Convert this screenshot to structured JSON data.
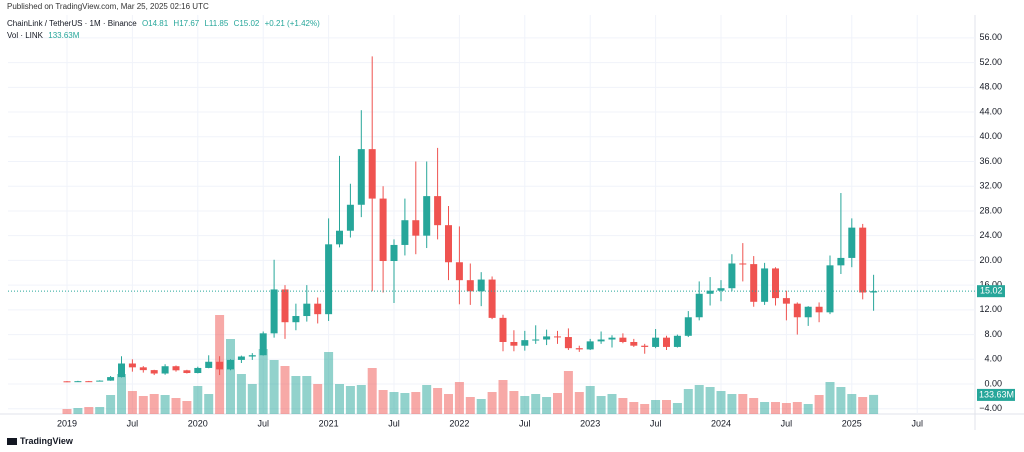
{
  "header": {
    "published": "Published on TradingView.com, Mar 25, 2025 02:16 UTC",
    "symbol": "ChainLink / TetherUS · 1M · Binance",
    "ohlc": [
      "O14.81",
      "H17.67",
      "L11.85",
      "C15.02",
      "+0.21 (+1.42%)"
    ],
    "volume_title": "Vol · LINK"
  },
  "footer": {
    "brand": "TradingView"
  },
  "chart_data": {
    "type": "candlestick",
    "x": [
      "2019-01",
      "2019-02",
      "2019-03",
      "2019-04",
      "2019-05",
      "2019-06",
      "2019-07",
      "2019-08",
      "2019-09",
      "2019-10",
      "2019-11",
      "2019-12",
      "2020-01",
      "2020-02",
      "2020-03",
      "2020-04",
      "2020-05",
      "2020-06",
      "2020-07",
      "2020-08",
      "2020-09",
      "2020-10",
      "2020-11",
      "2020-12",
      "2021-01",
      "2021-02",
      "2021-03",
      "2021-04",
      "2021-05",
      "2021-06",
      "2021-07",
      "2021-08",
      "2021-09",
      "2021-10",
      "2021-11",
      "2021-12",
      "2022-01",
      "2022-02",
      "2022-03",
      "2022-04",
      "2022-05",
      "2022-06",
      "2022-07",
      "2022-08",
      "2022-09",
      "2022-10",
      "2022-11",
      "2022-12",
      "2023-01",
      "2023-02",
      "2023-03",
      "2023-04",
      "2023-05",
      "2023-06",
      "2023-07",
      "2023-08",
      "2023-09",
      "2023-10",
      "2023-11",
      "2023-12",
      "2024-01",
      "2024-02",
      "2024-03",
      "2024-04",
      "2024-05",
      "2024-06",
      "2024-07",
      "2024-08",
      "2024-09",
      "2024-10",
      "2024-11",
      "2024-12",
      "2025-01",
      "2025-02",
      "2025-03"
    ],
    "open": [
      0.44,
      0.36,
      0.46,
      0.45,
      0.55,
      1.12,
      3.32,
      2.7,
      2.25,
      1.7,
      2.88,
      2.22,
      1.78,
      2.6,
      3.6,
      2.37,
      3.9,
      4.45,
      4.66,
      8.2,
      15.3,
      10,
      11,
      13,
      11.3,
      22.6,
      24.8,
      29,
      38,
      30,
      19.9,
      22.5,
      26.5,
      24,
      30.4,
      25.7,
      19.7,
      16.8,
      15,
      16.9,
      10.7,
      6.8,
      6.2,
      7.1,
      7.2,
      7.7,
      7.6,
      5.8,
      5.6,
      6.9,
      7.2,
      7.5,
      6.8,
      6.2,
      6,
      7.5,
      6,
      7.8,
      10.8,
      14.6,
      15.1,
      15.5,
      19.5,
      19.4,
      13.3,
      18.7,
      13.9,
      13,
      10.8,
      12.5,
      11.6,
      19.2,
      20.4,
      25.3,
      14.81
    ],
    "high": [
      0.46,
      0.52,
      0.5,
      0.6,
      1.3,
      4.5,
      4,
      2.9,
      2.3,
      3.2,
      3,
      2.3,
      2.8,
      4.65,
      4.5,
      4,
      4.6,
      5,
      8.5,
      20.1,
      16,
      13,
      16,
      14,
      26.8,
      36.9,
      32.4,
      44.3,
      53,
      32,
      23.4,
      30,
      36,
      36,
      38.2,
      28.8,
      25.5,
      19.5,
      18.1,
      17.4,
      11.2,
      8.7,
      8.6,
      9.5,
      8.8,
      8.6,
      9,
      6.2,
      7.3,
      8.5,
      7.9,
      8.2,
      7.3,
      6.5,
      8.9,
      7.8,
      8,
      11.8,
      16.6,
      17.3,
      16.8,
      21,
      22.8,
      20.7,
      19.6,
      18.9,
      15.1,
      13.2,
      12.6,
      13.2,
      20.8,
      30.9,
      26.8,
      25.9,
      17.67
    ],
    "low": [
      0.3,
      0.34,
      0.42,
      0.43,
      0.52,
      1.05,
      2,
      1.85,
      1.45,
      1.5,
      2,
      1.7,
      1.72,
      2.55,
      1.45,
      2.22,
      3.4,
      3.9,
      4.6,
      7.5,
      7.3,
      8.7,
      10.1,
      9.8,
      10.2,
      22.1,
      23.7,
      27,
      15,
      14.8,
      13.1,
      20.8,
      21,
      22,
      23.4,
      16.8,
      12.9,
      12.8,
      12.6,
      10.5,
      5.3,
      5.3,
      5.4,
      6.5,
      6.3,
      6.5,
      5.5,
      5.2,
      5.5,
      6.5,
      5.9,
      6.6,
      6,
      4.9,
      5.8,
      5.5,
      5.9,
      7.6,
      10.3,
      12.7,
      13.4,
      15,
      16.6,
      12.5,
      12.8,
      12.7,
      10.3,
      8,
      9.4,
      10,
      11.3,
      17.8,
      18.9,
      13.7,
      11.85
    ],
    "close": [
      0.36,
      0.46,
      0.45,
      0.55,
      1.12,
      3.32,
      2.7,
      2.25,
      1.7,
      2.88,
      2.22,
      1.78,
      2.6,
      3.6,
      2.37,
      3.9,
      4.45,
      4.66,
      8.2,
      15.3,
      10,
      11,
      13,
      11.3,
      22.6,
      24.8,
      29,
      38,
      30,
      19.9,
      22.5,
      26.5,
      24,
      30.4,
      25.7,
      19.7,
      16.8,
      15,
      16.9,
      10.7,
      6.8,
      6.2,
      7.1,
      7.2,
      7.7,
      7.6,
      5.8,
      5.6,
      6.9,
      7.2,
      7.5,
      6.8,
      6.2,
      6,
      7.5,
      6,
      7.8,
      10.8,
      14.6,
      15.1,
      15.5,
      19.5,
      19.4,
      13.3,
      18.7,
      13.9,
      13,
      10.8,
      12.5,
      11.6,
      19.2,
      20.4,
      25.3,
      14.81,
      15.02
    ],
    "volume": [
      35,
      42,
      49,
      49,
      133,
      280,
      161,
      126,
      140,
      133,
      112,
      91,
      196,
      140,
      693,
      525,
      280,
      210,
      455,
      378,
      336,
      266,
      266,
      210,
      434,
      210,
      196,
      203,
      322,
      168,
      154,
      147,
      154,
      203,
      182,
      140,
      224,
      119,
      105,
      154,
      238,
      161,
      126,
      140,
      119,
      147,
      301,
      154,
      196,
      126,
      140,
      112,
      84,
      70,
      98,
      98,
      77,
      175,
      203,
      189,
      161,
      140,
      140,
      112,
      84,
      84,
      77,
      84,
      70,
      133,
      224,
      189,
      140,
      119,
      133.63
    ],
    "last_volume_label": "133.63M",
    "up_color": "#26a69a",
    "down_color": "#ef5350",
    "ylim": [
      -4.85,
      59.7
    ],
    "yticks": [
      {
        "value": -4,
        "label": "−4.00"
      },
      {
        "value": 0,
        "label": "0.00"
      },
      {
        "value": 4,
        "label": "4.00"
      },
      {
        "value": 8,
        "label": "8.00"
      },
      {
        "value": 12,
        "label": "12.00"
      },
      {
        "value": 16,
        "label": "16.00"
      },
      {
        "value": 20,
        "label": "20.00"
      },
      {
        "value": 24,
        "label": "24.00"
      },
      {
        "value": 28,
        "label": "28.00"
      },
      {
        "value": 32,
        "label": "32.00"
      },
      {
        "value": 36,
        "label": "36.00"
      },
      {
        "value": 40,
        "label": "40.00"
      },
      {
        "value": 44,
        "label": "44.00"
      },
      {
        "value": 48,
        "label": "48.00"
      },
      {
        "value": 52,
        "label": "52.00"
      },
      {
        "value": 56,
        "label": "56.00"
      }
    ],
    "xticks": [
      {
        "value": "2019-01",
        "label": "2019"
      },
      {
        "value": "2019-07",
        "label": "Jul"
      },
      {
        "value": "2020-01",
        "label": "2020"
      },
      {
        "value": "2020-07",
        "label": "Jul"
      },
      {
        "value": "2021-01",
        "label": "2021"
      },
      {
        "value": "2021-07",
        "label": "Jul"
      },
      {
        "value": "2022-01",
        "label": "2022"
      },
      {
        "value": "2022-07",
        "label": "Jul"
      },
      {
        "value": "2023-01",
        "label": "2023"
      },
      {
        "value": "2023-07",
        "label": "Jul"
      },
      {
        "value": "2024-01",
        "label": "2024"
      },
      {
        "value": "2024-07",
        "label": "Jul"
      },
      {
        "value": "2025-01",
        "label": "2025"
      },
      {
        "value": "2025-07",
        "label": "Jul"
      }
    ],
    "grid": true
  }
}
